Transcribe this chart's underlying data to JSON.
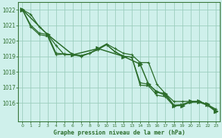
{
  "background_color": "#cff0eb",
  "grid_color": "#99ccbb",
  "line_color": "#2d6e2d",
  "marker_color": "#2d6e2d",
  "title": "Graphe pression niveau de la mer (hPa)",
  "xlim": [
    -0.5,
    23.5
  ],
  "ylim": [
    1014.8,
    1022.5
  ],
  "yticks": [
    1016,
    1017,
    1018,
    1019,
    1020,
    1021,
    1022
  ],
  "xticks": [
    0,
    1,
    2,
    3,
    4,
    5,
    6,
    7,
    8,
    9,
    10,
    11,
    12,
    13,
    14,
    15,
    16,
    17,
    18,
    19,
    20,
    21,
    22,
    23
  ],
  "series": [
    {
      "x": [
        0,
        1,
        2,
        3,
        4,
        5,
        6,
        7,
        8,
        9,
        10,
        11,
        12,
        13,
        14,
        15,
        16,
        17,
        18,
        19,
        20,
        21,
        22,
        23
      ],
      "y": [
        1022.0,
        1021.7,
        1020.9,
        1020.4,
        1019.7,
        1019.1,
        1019.1,
        1019.0,
        1019.2,
        1019.5,
        1019.8,
        1019.5,
        1019.2,
        1019.1,
        1018.6,
        1018.6,
        1017.2,
        1016.6,
        1016.1,
        1016.1,
        1016.1,
        1016.1,
        1015.9,
        1015.6
      ],
      "lw": 1.0,
      "ms": 3,
      "mk": "+"
    },
    {
      "x": [
        0,
        1,
        2,
        3,
        4,
        5,
        6,
        7,
        8,
        9,
        10,
        11,
        12,
        13,
        14,
        15,
        16,
        17,
        18,
        19,
        20,
        21,
        22,
        23
      ],
      "y": [
        1022.0,
        1021.0,
        1020.5,
        1020.4,
        1019.2,
        1019.15,
        1019.1,
        1019.05,
        1019.2,
        1019.45,
        1019.75,
        1019.3,
        1019.0,
        1018.95,
        1017.3,
        1017.2,
        1016.7,
        1016.5,
        1015.85,
        1015.9,
        1016.1,
        1016.1,
        1015.9,
        1015.5
      ],
      "lw": 1.0,
      "ms": 3,
      "mk": "+"
    },
    {
      "x": [
        0,
        1,
        2,
        3,
        4,
        5,
        6,
        7,
        8,
        9,
        10,
        11,
        12,
        13,
        14,
        15,
        16,
        17,
        18,
        19,
        20,
        21,
        22,
        23
      ],
      "y": [
        1022.0,
        1020.9,
        1020.4,
        1020.3,
        1019.1,
        1019.15,
        1019.1,
        1019.05,
        1019.2,
        1019.45,
        1019.75,
        1019.3,
        1019.0,
        1018.95,
        1017.15,
        1017.1,
        1016.5,
        1016.4,
        1015.8,
        1015.85,
        1016.05,
        1016.05,
        1015.85,
        1015.45
      ],
      "lw": 1.0,
      "ms": 3,
      "mk": "+"
    },
    {
      "x": [
        0,
        3,
        6,
        9,
        12,
        14,
        15,
        16,
        17,
        18,
        19,
        20,
        21,
        22,
        23
      ],
      "y": [
        1022.0,
        1020.4,
        1019.1,
        1019.5,
        1019.0,
        1018.5,
        1017.2,
        1016.7,
        1016.6,
        1015.85,
        1015.85,
        1016.1,
        1016.1,
        1015.9,
        1015.5
      ],
      "lw": 1.2,
      "ms": 4,
      "mk": ">"
    }
  ]
}
